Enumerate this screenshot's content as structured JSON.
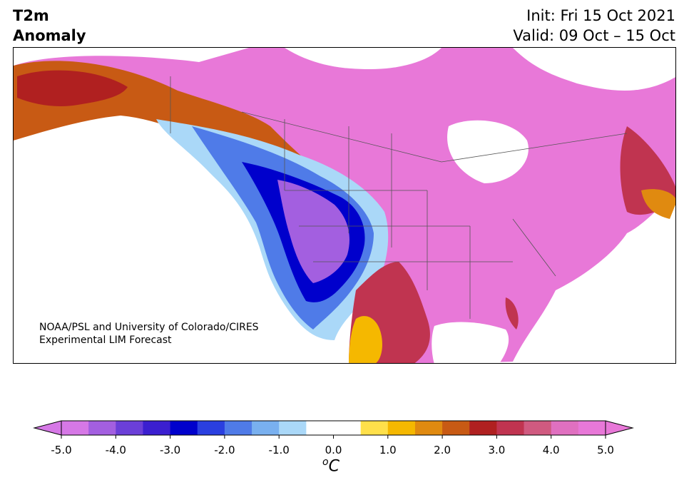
{
  "header": {
    "title_line1": "T2m",
    "title_line2": "Anomaly",
    "init": "Init: Fri 15 Oct 2021",
    "valid": "Valid: 09 Oct – 15 Oct"
  },
  "credit": {
    "line1": "NOAA/PSL and University of Colorado/CIRES",
    "line2": "Experimental LIM Forecast"
  },
  "colorbar": {
    "units_base": "C",
    "units_sup": "o",
    "ticks": [
      "-5.0",
      "-4.0",
      "-3.0",
      "-2.0",
      "-1.0",
      "0.0",
      "1.0",
      "2.0",
      "3.0",
      "4.0",
      "5.0"
    ],
    "colors": [
      "#d678e6",
      "#a35fe0",
      "#6b3fd8",
      "#3b1fd0",
      "#0000cc",
      "#2a3fe0",
      "#4f7be8",
      "#79b0ef",
      "#aad8f8",
      "#ffffff",
      "#ffffff",
      "#ffe04a",
      "#f5b800",
      "#e08a10",
      "#c85a14",
      "#b02020",
      "#c03450",
      "#d05a80",
      "#e070c0",
      "#e878d8"
    ],
    "under_color": "#d678e6",
    "over_color": "#e878d8"
  },
  "map": {
    "region": "North America",
    "warm_color": "#e878d8",
    "cold_color": "#0000cc"
  }
}
